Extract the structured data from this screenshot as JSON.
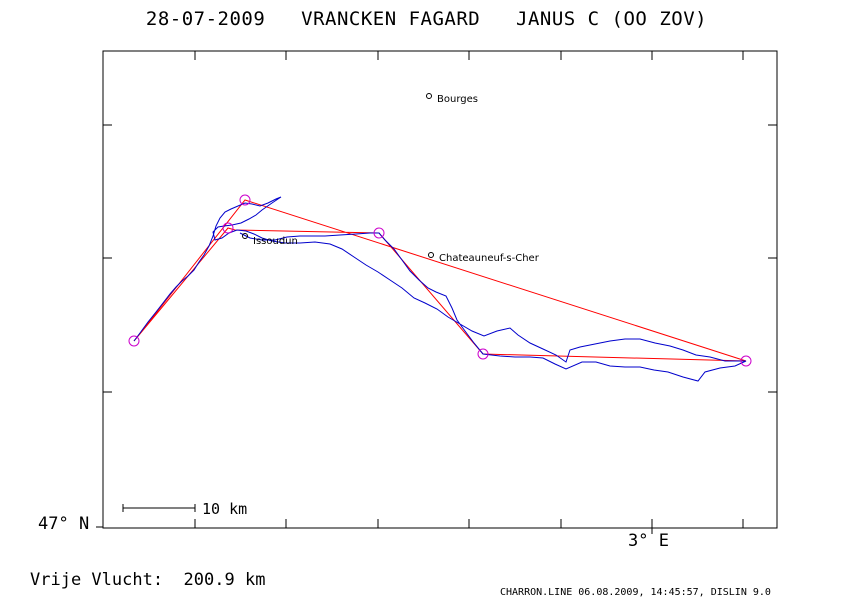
{
  "title": {
    "date": "28-07-2009",
    "pilot": "VRANCKEN FAGARD",
    "glider": "JANUS C (OO ZOV)"
  },
  "axes": {
    "lat_label": "47° N",
    "lon_label": "3° E"
  },
  "scale_bar": {
    "label": "10 km"
  },
  "cities": [
    {
      "name": "Bourges"
    },
    {
      "name": "Chateauneuf-s-Cher"
    },
    {
      "name": "Issoudun"
    }
  ],
  "distance": {
    "label": "Vrije Vlucht:",
    "value": "200.9 km"
  },
  "footer": "CHARRON.LINE 06.08.2009, 14:45:57, DISLIN 9.0",
  "colors": {
    "track": "#0000cc",
    "task": "#ff0000",
    "turnpoint": "#cc00cc",
    "frame": "#000000"
  }
}
